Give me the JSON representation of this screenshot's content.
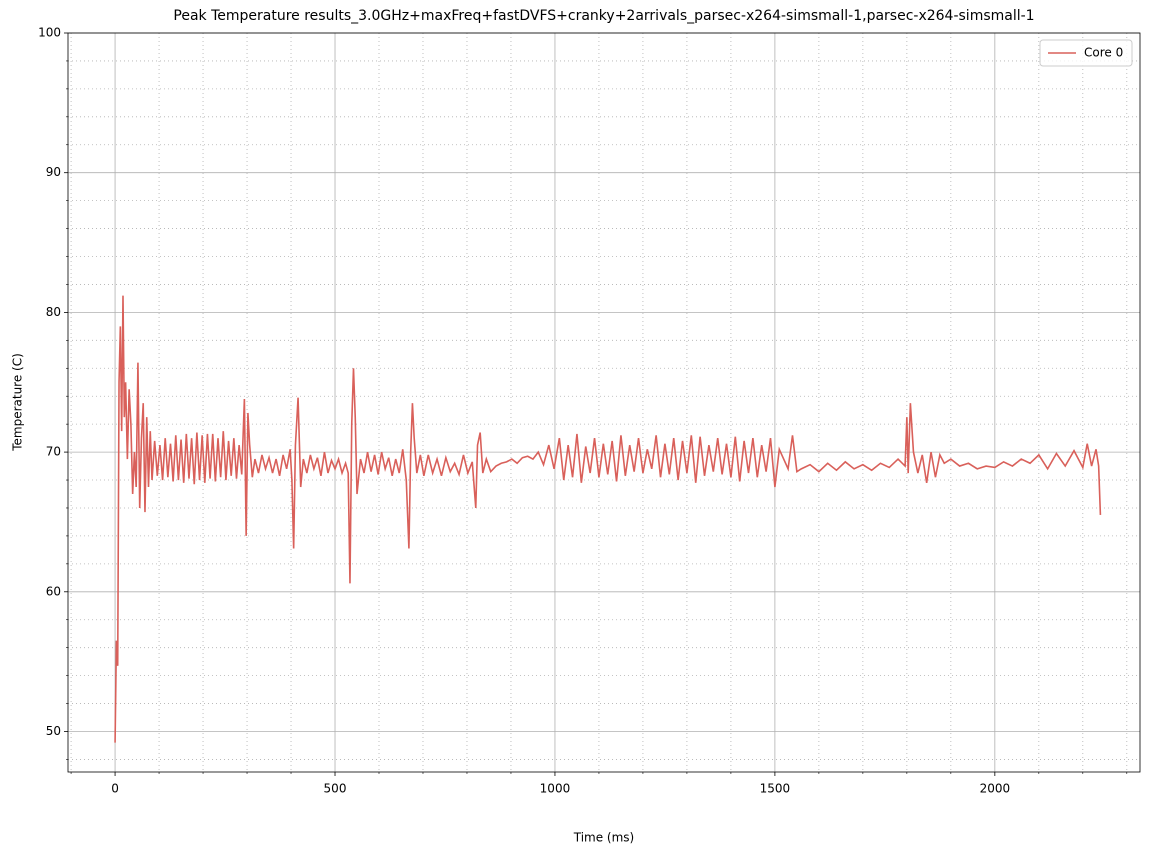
{
  "chart_data": {
    "type": "line",
    "title": "Peak Temperature results_3.0GHz+maxFreq+fastDVFS+cranky+2arrivals_parsec-x264-simsmall-1,parsec-x264-simsmall-1",
    "x_label": "Time (ms)",
    "y_label": "Temperature (C)",
    "x": [
      0,
      3,
      6,
      9,
      12,
      15,
      18,
      21,
      24,
      28,
      32,
      36,
      40,
      44,
      48,
      52,
      56,
      60,
      64,
      68,
      72,
      76,
      80,
      84,
      90,
      96,
      102,
      108,
      114,
      120,
      126,
      132,
      138,
      144,
      150,
      156,
      162,
      168,
      174,
      180,
      186,
      192,
      198,
      204,
      210,
      216,
      222,
      228,
      234,
      240,
      246,
      252,
      258,
      264,
      270,
      276,
      282,
      288,
      294,
      298,
      302,
      306,
      312,
      318,
      326,
      334,
      342,
      350,
      358,
      366,
      374,
      382,
      390,
      398,
      402,
      406,
      410,
      416,
      422,
      428,
      436,
      444,
      452,
      460,
      468,
      476,
      484,
      492,
      500,
      508,
      516,
      524,
      530,
      534,
      538,
      542,
      546,
      550,
      558,
      566,
      574,
      582,
      590,
      598,
      606,
      614,
      622,
      630,
      638,
      646,
      654,
      662,
      668,
      672,
      676,
      680,
      686,
      694,
      702,
      712,
      722,
      732,
      742,
      752,
      762,
      772,
      782,
      792,
      802,
      812,
      820,
      824,
      830,
      836,
      844,
      854,
      866,
      878,
      890,
      902,
      914,
      926,
      938,
      950,
      962,
      974,
      986,
      998,
      1010,
      1020,
      1030,
      1040,
      1050,
      1060,
      1070,
      1080,
      1090,
      1100,
      1110,
      1120,
      1130,
      1140,
      1150,
      1160,
      1170,
      1180,
      1190,
      1200,
      1210,
      1220,
      1230,
      1240,
      1250,
      1260,
      1270,
      1280,
      1290,
      1300,
      1310,
      1320,
      1330,
      1340,
      1350,
      1360,
      1370,
      1380,
      1390,
      1400,
      1410,
      1420,
      1430,
      1440,
      1450,
      1460,
      1470,
      1480,
      1490,
      1500,
      1510,
      1520,
      1530,
      1540,
      1550,
      1560,
      1580,
      1600,
      1620,
      1640,
      1660,
      1680,
      1700,
      1720,
      1740,
      1760,
      1780,
      1796,
      1800,
      1803,
      1808,
      1815,
      1825,
      1835,
      1845,
      1855,
      1865,
      1875,
      1885,
      1900,
      1920,
      1940,
      1960,
      1980,
      2000,
      2020,
      2040,
      2060,
      2080,
      2100,
      2120,
      2140,
      2160,
      2180,
      2200,
      2210,
      2220,
      2230,
      2236,
      2240
    ],
    "series": [
      {
        "name": "Core 0",
        "color": "#d9605a",
        "values": [
          49.2,
          56.5,
          54.7,
          75,
          79,
          71.5,
          81.2,
          72.5,
          75,
          69.5,
          74.5,
          72,
          67,
          70,
          67.5,
          76.4,
          66,
          71,
          73.5,
          65.7,
          72.5,
          67.5,
          71.5,
          68,
          70.8,
          68.3,
          70.5,
          68,
          71,
          68.2,
          70.6,
          67.9,
          71.2,
          68,
          70.9,
          67.8,
          71.3,
          68.1,
          71,
          67.7,
          71.4,
          68,
          71.2,
          67.8,
          71.3,
          68.1,
          71.3,
          67.9,
          71,
          68.2,
          71.5,
          68,
          70.8,
          68.3,
          71,
          68.1,
          70.5,
          68.4,
          73.8,
          64,
          72.8,
          70.5,
          68.2,
          69.5,
          68.5,
          69.8,
          68.8,
          69.6,
          68.5,
          69.5,
          68.3,
          69.8,
          68.8,
          70.2,
          68,
          63.1,
          70.5,
          73.9,
          67.5,
          69.5,
          68.5,
          69.8,
          68.8,
          69.6,
          68.3,
          70,
          68.5,
          69.4,
          68.8,
          69.5,
          68.5,
          69.2,
          68.5,
          60.6,
          72,
          76,
          72.5,
          67,
          69.5,
          68.5,
          70,
          68.6,
          69.8,
          68.4,
          70,
          68.8,
          69.6,
          68.3,
          69.5,
          68.5,
          70.2,
          68,
          63.1,
          70,
          73.5,
          71,
          68.5,
          69.8,
          68.3,
          69.8,
          68.5,
          69.5,
          68.3,
          69.6,
          68.6,
          69.2,
          68.4,
          69.8,
          68.5,
          69.3,
          66,
          70.5,
          71.4,
          68.5,
          69.5,
          68.6,
          69,
          69.2,
          69.3,
          69.5,
          69.2,
          69.6,
          69.7,
          69.5,
          70,
          69.1,
          70.5,
          68.8,
          71,
          68,
          70.5,
          68.2,
          71.3,
          67.8,
          70.4,
          68.5,
          71,
          68.2,
          70.6,
          68.4,
          70.8,
          67.9,
          71.2,
          68.3,
          70.5,
          68.6,
          71,
          68.5,
          70.2,
          68.8,
          71.2,
          68.2,
          70.6,
          68.4,
          71,
          68,
          70.8,
          68.5,
          71.2,
          67.8,
          71.1,
          68.3,
          70.5,
          68.6,
          71,
          68.4,
          70.6,
          68.2,
          71.1,
          67.9,
          70.8,
          68.5,
          71,
          68.2,
          70.5,
          68.6,
          71,
          67.5,
          70.2,
          69.5,
          68.8,
          71.2,
          68.6,
          68.8,
          69.1,
          68.6,
          69.2,
          68.7,
          69.3,
          68.8,
          69.1,
          68.7,
          69.2,
          68.9,
          69.5,
          69,
          72.5,
          68.5,
          73.5,
          70,
          68.5,
          69.8,
          67.8,
          70,
          68.2,
          69.8,
          69.2,
          69.5,
          69,
          69.2,
          68.8,
          69,
          68.9,
          69.3,
          69,
          69.5,
          69.2,
          69.8,
          68.8,
          69.9,
          69,
          70.1,
          68.9,
          70.6,
          69,
          70.2,
          69,
          65.5
        ]
      }
    ],
    "xlim": [
      -107,
      2330
    ],
    "ylim": [
      47.1,
      100
    ],
    "xticks": [
      0,
      500,
      1000,
      1500,
      2000
    ],
    "yticks": [
      50,
      60,
      70,
      80,
      90,
      100
    ],
    "xminorticks": [
      -100,
      100,
      200,
      300,
      400,
      600,
      700,
      800,
      900,
      1100,
      1200,
      1300,
      1400,
      1600,
      1700,
      1800,
      1900,
      2100,
      2200,
      2300
    ],
    "yminorticks": [
      48,
      52,
      54,
      56,
      58,
      62,
      64,
      66,
      68,
      72,
      74,
      76,
      78,
      82,
      84,
      86,
      88,
      92,
      94,
      96,
      98
    ],
    "grid": true,
    "minor_grid": true,
    "legend": "upper right"
  }
}
